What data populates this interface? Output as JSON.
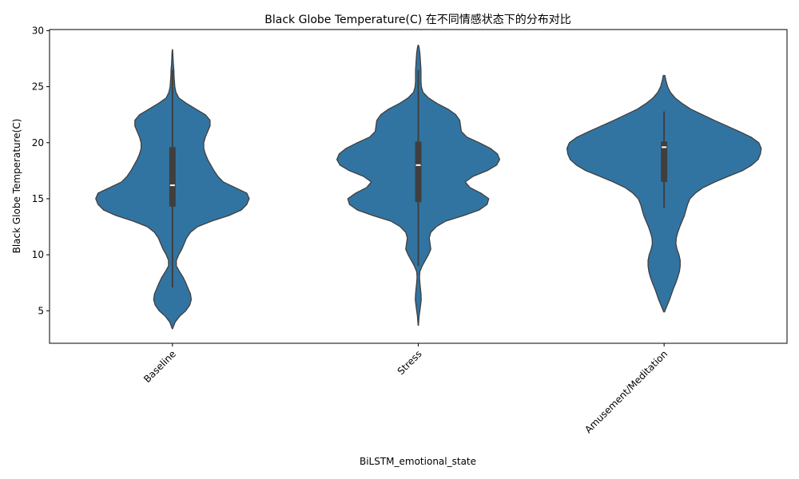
{
  "chart_data": {
    "type": "violin",
    "title": "Black Globe Temperature(C) 在不同情感状态下的分布对比",
    "xlabel": "BiLSTM_emotional_state",
    "ylabel": "Black Globe Temperature(C)",
    "ylim": [
      2.1,
      30.1
    ],
    "yticks": [
      5,
      10,
      15,
      20,
      25,
      30
    ],
    "grid": false,
    "legend": "none",
    "colors": {
      "fill": "#3274a1",
      "edge": "#3f3f3f",
      "box": "#3f3f3f",
      "median": "#ffffff"
    },
    "categories": [
      "Baseline",
      "Stress",
      "Amusement/Meditation"
    ],
    "series": [
      {
        "category": "Baseline",
        "box": {
          "whisker_low": 7.1,
          "q1": 14.3,
          "median": 16.2,
          "q3": 19.6,
          "whisker_high": 26.5
        },
        "density": [
          [
            3.4,
            0.2
          ],
          [
            4.0,
            3.5
          ],
          [
            4.5,
            9
          ],
          [
            5.0,
            17
          ],
          [
            5.5,
            22
          ],
          [
            6.0,
            24
          ],
          [
            6.5,
            23
          ],
          [
            7.0,
            20
          ],
          [
            7.5,
            17
          ],
          [
            8.0,
            13.5
          ],
          [
            8.5,
            9
          ],
          [
            9.0,
            5
          ],
          [
            9.5,
            5
          ],
          [
            10.0,
            8
          ],
          [
            10.5,
            12
          ],
          [
            11.0,
            15
          ],
          [
            11.5,
            18
          ],
          [
            12.0,
            23
          ],
          [
            12.5,
            32
          ],
          [
            13.0,
            50
          ],
          [
            13.5,
            72
          ],
          [
            14.0,
            88
          ],
          [
            14.5,
            95
          ],
          [
            15.0,
            98
          ],
          [
            15.5,
            95
          ],
          [
            16.0,
            80
          ],
          [
            16.5,
            65
          ],
          [
            17.0,
            58
          ],
          [
            17.5,
            53
          ],
          [
            18.0,
            49
          ],
          [
            18.5,
            45
          ],
          [
            19.0,
            42
          ],
          [
            19.5,
            40
          ],
          [
            20.0,
            40
          ],
          [
            20.5,
            42
          ],
          [
            21.0,
            45
          ],
          [
            21.5,
            48
          ],
          [
            22.0,
            48
          ],
          [
            22.5,
            42
          ],
          [
            23.0,
            30
          ],
          [
            23.5,
            18
          ],
          [
            24.0,
            8
          ],
          [
            24.5,
            4.5
          ],
          [
            25.0,
            3
          ],
          [
            25.5,
            2.5
          ],
          [
            26.0,
            2
          ],
          [
            26.5,
            1.8
          ],
          [
            27.0,
            1.2
          ],
          [
            27.5,
            0.8
          ],
          [
            28.0,
            0.5
          ],
          [
            28.3,
            0.2
          ]
        ]
      },
      {
        "category": "Stress",
        "box": {
          "whisker_low": 9.0,
          "q1": 14.7,
          "median": 18.0,
          "q3": 20.1,
          "whisker_high": 26.5
        },
        "density": [
          [
            3.7,
            0.2
          ],
          [
            4.5,
            1
          ],
          [
            5.0,
            2
          ],
          [
            5.5,
            3
          ],
          [
            6.0,
            3.8
          ],
          [
            6.5,
            3.5
          ],
          [
            7.0,
            2.8
          ],
          [
            7.5,
            2
          ],
          [
            8.0,
            1.5
          ],
          [
            8.5,
            2
          ],
          [
            9.0,
            5
          ],
          [
            9.5,
            9
          ],
          [
            10.0,
            13
          ],
          [
            10.5,
            16
          ],
          [
            11.0,
            15
          ],
          [
            11.5,
            14
          ],
          [
            12.0,
            16
          ],
          [
            12.5,
            23
          ],
          [
            13.0,
            35
          ],
          [
            13.5,
            58
          ],
          [
            14.0,
            78
          ],
          [
            14.5,
            88
          ],
          [
            15.0,
            90
          ],
          [
            15.5,
            80
          ],
          [
            16.0,
            66
          ],
          [
            16.5,
            60
          ],
          [
            17.0,
            70
          ],
          [
            17.5,
            88
          ],
          [
            18.0,
            100
          ],
          [
            18.5,
            104
          ],
          [
            19.0,
            101
          ],
          [
            19.5,
            92
          ],
          [
            20.0,
            78
          ],
          [
            20.5,
            62
          ],
          [
            21.0,
            55
          ],
          [
            21.5,
            54
          ],
          [
            22.0,
            53
          ],
          [
            22.5,
            48
          ],
          [
            23.0,
            38
          ],
          [
            23.5,
            24
          ],
          [
            24.0,
            13
          ],
          [
            24.5,
            6
          ],
          [
            25.0,
            4
          ],
          [
            25.5,
            3.5
          ],
          [
            26.0,
            3.5
          ],
          [
            26.5,
            3.5
          ],
          [
            27.0,
            3
          ],
          [
            27.5,
            2.5
          ],
          [
            28.0,
            2
          ],
          [
            28.5,
            1
          ],
          [
            28.7,
            0.3
          ]
        ]
      },
      {
        "category": "Amusement/Meditation",
        "box": {
          "whisker_low": 14.2,
          "q1": 16.5,
          "median": 19.6,
          "q3": 20.1,
          "whisker_high": 22.8
        },
        "density": [
          [
            4.9,
            0.5
          ],
          [
            5.5,
            4
          ],
          [
            6.0,
            7
          ],
          [
            6.5,
            9.5
          ],
          [
            7.0,
            12
          ],
          [
            7.5,
            15
          ],
          [
            8.0,
            17.5
          ],
          [
            8.5,
            19.5
          ],
          [
            9.0,
            20.5
          ],
          [
            9.5,
            20.5
          ],
          [
            10.0,
            19
          ],
          [
            10.5,
            16.5
          ],
          [
            11.0,
            15
          ],
          [
            11.5,
            15.5
          ],
          [
            12.0,
            17.5
          ],
          [
            12.5,
            20
          ],
          [
            13.0,
            23
          ],
          [
            13.5,
            26
          ],
          [
            14.0,
            28
          ],
          [
            14.5,
            30
          ],
          [
            15.0,
            33
          ],
          [
            15.5,
            40
          ],
          [
            16.0,
            50
          ],
          [
            16.5,
            65
          ],
          [
            17.0,
            82
          ],
          [
            17.5,
            100
          ],
          [
            18.0,
            112
          ],
          [
            18.5,
            120
          ],
          [
            19.0,
            123
          ],
          [
            19.5,
            124
          ],
          [
            20.0,
            121
          ],
          [
            20.5,
            111
          ],
          [
            21.0,
            96
          ],
          [
            21.5,
            80
          ],
          [
            22.0,
            64
          ],
          [
            22.5,
            49
          ],
          [
            23.0,
            34
          ],
          [
            23.5,
            23
          ],
          [
            24.0,
            14
          ],
          [
            24.5,
            8
          ],
          [
            25.0,
            4.5
          ],
          [
            25.5,
            2.5
          ],
          [
            26.0,
            1
          ]
        ]
      }
    ]
  }
}
